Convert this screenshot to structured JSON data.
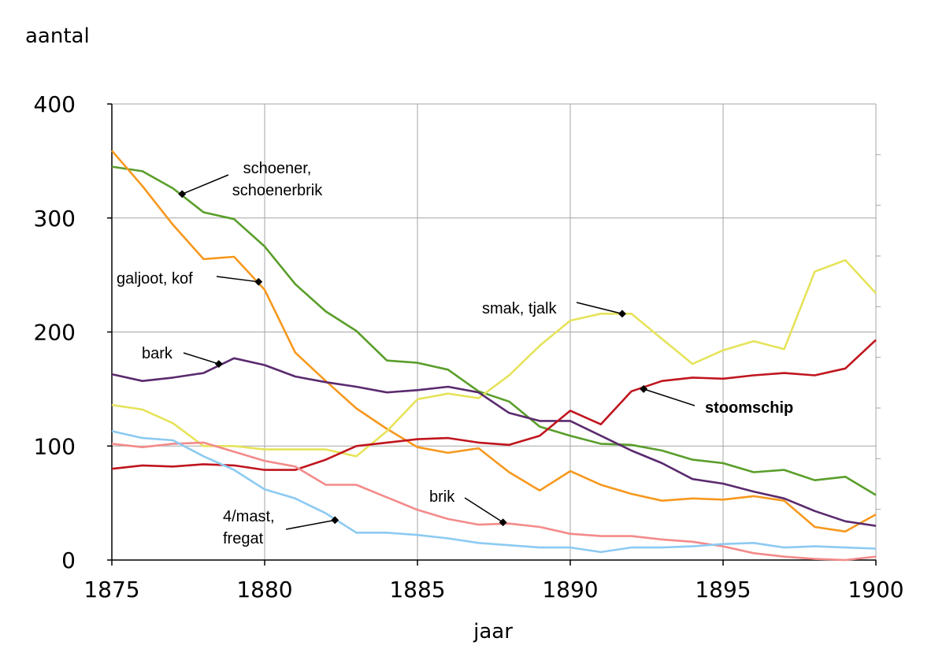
{
  "chart_data": {
    "type": "line",
    "xlabel": "jaar",
    "ylabel": "aantal",
    "xlim": [
      1875,
      1900
    ],
    "ylim": [
      0,
      400
    ],
    "xticks": [
      1875,
      1880,
      1885,
      1890,
      1895,
      1900
    ],
    "yticks": [
      0,
      100,
      200,
      300,
      400
    ],
    "grid": true,
    "x": [
      1875,
      1876,
      1877,
      1878,
      1879,
      1880,
      1881,
      1882,
      1883,
      1884,
      1885,
      1886,
      1887,
      1888,
      1889,
      1890,
      1891,
      1892,
      1893,
      1894,
      1895,
      1896,
      1897,
      1898,
      1899,
      1900
    ],
    "series": [
      {
        "key": "schoener",
        "name": "schoener, schoenerbrik",
        "color": "#5a9e2a",
        "values": [
          345,
          341,
          326,
          305,
          299,
          275,
          242,
          218,
          201,
          175,
          173,
          167,
          148,
          139,
          117,
          109,
          102,
          101,
          96,
          88,
          85,
          77,
          79,
          70,
          73,
          57
        ]
      },
      {
        "key": "galjoot",
        "name": "galjoot, kof",
        "color": "#f7981d",
        "values": [
          359,
          328,
          294,
          264,
          266,
          237,
          182,
          157,
          133,
          115,
          99,
          94,
          98,
          77,
          61,
          78,
          66,
          58,
          52,
          54,
          53,
          56,
          52,
          29,
          25,
          40
        ]
      },
      {
        "key": "smak",
        "name": "smak, tjalk",
        "color": "#e6e35a",
        "values": [
          136,
          132,
          120,
          100,
          100,
          97,
          97,
          97,
          91,
          113,
          141,
          146,
          142,
          162,
          188,
          210,
          216,
          216,
          194,
          172,
          184,
          192,
          185,
          253,
          263,
          234
        ]
      },
      {
        "key": "bark",
        "name": "bark",
        "color": "#5a2a6e",
        "values": [
          163,
          157,
          160,
          164,
          177,
          171,
          161,
          156,
          152,
          147,
          149,
          152,
          147,
          129,
          122,
          122,
          109,
          96,
          85,
          71,
          67,
          60,
          54,
          43,
          34,
          30
        ]
      },
      {
        "key": "stoomschip",
        "name": "stoomschip",
        "color": "#c0151e",
        "values": [
          80,
          83,
          82,
          84,
          83,
          79,
          79,
          88,
          100,
          103,
          106,
          107,
          103,
          101,
          109,
          131,
          119,
          148,
          157,
          160,
          159,
          162,
          164,
          162,
          168,
          193
        ]
      },
      {
        "key": "brik",
        "name": "brik",
        "color": "#f48a8a",
        "values": [
          102,
          99,
          102,
          103,
          95,
          87,
          82,
          66,
          66,
          55,
          44,
          36,
          31,
          32,
          29,
          23,
          21,
          21,
          18,
          16,
          12,
          6,
          3,
          1,
          0,
          3
        ]
      },
      {
        "key": "mast4",
        "name": "4/mast, fregat",
        "color": "#8ccaf2",
        "values": [
          113,
          107,
          105,
          91,
          79,
          62,
          54,
          41,
          24,
          24,
          22,
          19,
          15,
          13,
          11,
          11,
          7,
          11,
          11,
          12,
          14,
          15,
          11,
          12,
          11,
          10
        ]
      }
    ],
    "annotations": [
      {
        "series": "schoener",
        "lines": [
          "schoener,",
          "schoenerbrik"
        ],
        "anchor_x": 1877.3,
        "anchor_y": 321,
        "bold": false
      },
      {
        "series": "galjoot",
        "lines": [
          "galjoot, kof"
        ],
        "anchor_x": 1879.8,
        "anchor_y": 244,
        "bold": false
      },
      {
        "series": "smak",
        "lines": [
          "smak, tjalk"
        ],
        "anchor_x": 1891.7,
        "anchor_y": 216,
        "bold": false
      },
      {
        "series": "bark",
        "lines": [
          "bark"
        ],
        "anchor_x": 1878.5,
        "anchor_y": 172,
        "bold": false
      },
      {
        "series": "stoomschip",
        "lines": [
          "stoomschip"
        ],
        "anchor_x": 1892.4,
        "anchor_y": 150,
        "bold": true
      },
      {
        "series": "brik",
        "lines": [
          "brik"
        ],
        "anchor_x": 1887.8,
        "anchor_y": 33,
        "bold": false
      },
      {
        "series": "mast4",
        "lines": [
          "4/mast,",
          "fregat"
        ],
        "anchor_x": 1882.3,
        "anchor_y": 35,
        "bold": false
      }
    ]
  }
}
